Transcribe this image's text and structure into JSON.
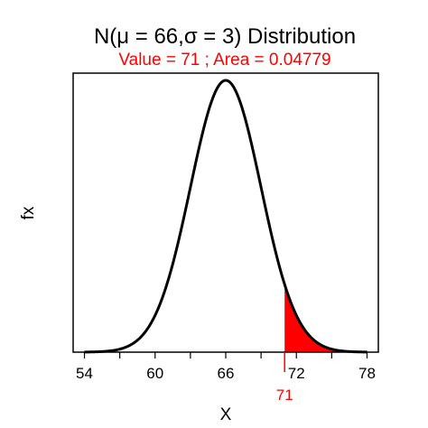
{
  "chart_data": {
    "type": "area",
    "title": "N(μ = 66,σ = 3) Distribution",
    "subtitle": "Value = 71 ; Area = 0.04779",
    "xlabel": "X",
    "ylabel": "fx",
    "distribution": {
      "family": "normal",
      "mean": 66,
      "sd": 3
    },
    "xlim": [
      54,
      78
    ],
    "x_ticks": [
      54,
      57,
      60,
      63,
      66,
      69,
      72,
      75,
      78
    ],
    "x_tick_labels": [
      {
        "value": 54,
        "label": "54"
      },
      {
        "value": 60,
        "label": "60"
      },
      {
        "value": 66,
        "label": "66"
      },
      {
        "value": 72,
        "label": "72"
      },
      {
        "value": 78,
        "label": "78"
      }
    ],
    "shaded_region": {
      "from": 71,
      "to": 78,
      "area": 0.04779,
      "color": "#ff0000"
    },
    "marker": {
      "value": 71,
      "label": "71",
      "color": "#ff0000"
    },
    "y_ticks_shown": false,
    "grid": false,
    "legend": "none"
  },
  "colors": {
    "curve": "#000000",
    "highlight": "#ff0000",
    "background": "#ffffff"
  }
}
